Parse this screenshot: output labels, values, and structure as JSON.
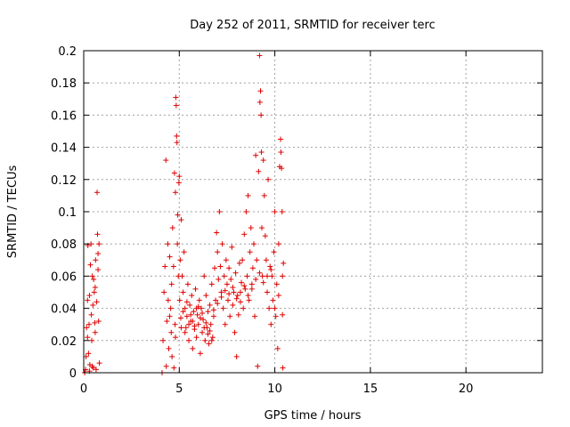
{
  "chart_data": {
    "type": "scatter",
    "title": "Day 252 of 2011, SRMTID for receiver terc",
    "xlabel": "GPS time / hours",
    "ylabel": "SRMTID / TECUs",
    "xlim": [
      0,
      24
    ],
    "ylim": [
      0,
      0.2
    ],
    "xticks": [
      0,
      5,
      10,
      15,
      20
    ],
    "xtick_labels": [
      "0",
      "5",
      "10",
      "15",
      "20"
    ],
    "yticks": [
      0,
      0.02,
      0.04,
      0.06,
      0.08,
      0.1,
      0.12,
      0.14,
      0.16,
      0.18,
      0.2
    ],
    "ytick_labels": [
      "0",
      "0.02",
      "0.04",
      "0.06",
      "0.08",
      "0.1",
      "0.12",
      "0.14",
      "0.16",
      "0.18",
      "0.2"
    ],
    "grid": true,
    "marker": "+",
    "color": "#e00000",
    "series": [
      {
        "points": [
          [
            0.05,
            0.0
          ],
          [
            0.1,
            0.002
          ],
          [
            0.12,
            0.01
          ],
          [
            0.15,
            0.028
          ],
          [
            0.2,
            0.045
          ],
          [
            0.22,
            0.079
          ],
          [
            0.25,
            0.012
          ],
          [
            0.28,
            0.03
          ],
          [
            0.3,
            0.048
          ],
          [
            0.32,
            0.005
          ],
          [
            0.35,
            0.067
          ],
          [
            0.38,
            0.08
          ],
          [
            0.4,
            0.036
          ],
          [
            0.42,
            0.02
          ],
          [
            0.45,
            0.06
          ],
          [
            0.48,
            0.042
          ],
          [
            0.5,
            0.003
          ],
          [
            0.52,
            0.058
          ],
          [
            0.55,
            0.05
          ],
          [
            0.58,
            0.031
          ],
          [
            0.6,
            0.025
          ],
          [
            0.62,
            0.07
          ],
          [
            0.65,
            0.002
          ],
          [
            0.68,
            0.044
          ],
          [
            0.7,
            0.112
          ],
          [
            0.72,
            0.086
          ],
          [
            0.75,
            0.064
          ],
          [
            0.78,
            0.032
          ],
          [
            0.8,
            0.08
          ],
          [
            0.82,
            0.006
          ],
          [
            0.3,
            0.001
          ],
          [
            0.45,
            0.004
          ],
          [
            0.6,
            0.053
          ],
          [
            0.75,
            0.074
          ],
          [
            0.2,
            0.022
          ],
          [
            4.1,
            0.0
          ],
          [
            4.15,
            0.02
          ],
          [
            4.2,
            0.05
          ],
          [
            4.25,
            0.066
          ],
          [
            4.3,
            0.132
          ],
          [
            4.32,
            0.004
          ],
          [
            4.35,
            0.032
          ],
          [
            4.4,
            0.08
          ],
          [
            4.42,
            0.045
          ],
          [
            4.45,
            0.015
          ],
          [
            4.5,
            0.072
          ],
          [
            4.55,
            0.04
          ],
          [
            4.58,
            0.025
          ],
          [
            4.6,
            0.055
          ],
          [
            4.62,
            0.01
          ],
          [
            4.65,
            0.09
          ],
          [
            4.7,
            0.066
          ],
          [
            4.72,
            0.003
          ],
          [
            4.75,
            0.124
          ],
          [
            4.78,
            0.03
          ],
          [
            4.8,
            0.112
          ],
          [
            4.82,
            0.171
          ],
          [
            4.84,
            0.166
          ],
          [
            4.86,
            0.147
          ],
          [
            4.88,
            0.143
          ],
          [
            4.9,
            0.08
          ],
          [
            4.92,
            0.098
          ],
          [
            4.95,
            0.06
          ],
          [
            4.98,
            0.118
          ],
          [
            5.0,
            0.122
          ],
          [
            5.02,
            0.045
          ],
          [
            5.05,
            0.07
          ],
          [
            5.08,
            0.034
          ],
          [
            5.1,
            0.095
          ],
          [
            5.15,
            0.06
          ],
          [
            5.2,
            0.05
          ],
          [
            5.25,
            0.075
          ],
          [
            5.3,
            0.04
          ],
          [
            5.35,
            0.028
          ],
          [
            5.4,
            0.035
          ],
          [
            5.45,
            0.055
          ],
          [
            5.5,
            0.02
          ],
          [
            5.55,
            0.042
          ],
          [
            5.6,
            0.032
          ],
          [
            5.65,
            0.048
          ],
          [
            5.7,
            0.015
          ],
          [
            5.75,
            0.038
          ],
          [
            5.8,
            0.027
          ],
          [
            5.85,
            0.052
          ],
          [
            5.9,
            0.022
          ],
          [
            5.95,
            0.036
          ],
          [
            6.0,
            0.03
          ],
          [
            6.05,
            0.045
          ],
          [
            6.1,
            0.012
          ],
          [
            6.15,
            0.04
          ],
          [
            6.2,
            0.025
          ],
          [
            6.25,
            0.033
          ],
          [
            6.3,
            0.06
          ],
          [
            6.35,
            0.02
          ],
          [
            6.4,
            0.048
          ],
          [
            6.45,
            0.028
          ],
          [
            6.5,
            0.038
          ],
          [
            6.55,
            0.018
          ],
          [
            6.6,
            0.042
          ],
          [
            6.65,
            0.03
          ],
          [
            6.7,
            0.055
          ],
          [
            6.75,
            0.022
          ],
          [
            6.8,
            0.035
          ],
          [
            6.85,
            0.065
          ],
          [
            6.9,
            0.045
          ],
          [
            6.95,
            0.087
          ],
          [
            7.0,
            0.075
          ],
          [
            7.05,
            0.058
          ],
          [
            7.1,
            0.1
          ],
          [
            7.15,
            0.066
          ],
          [
            7.2,
            0.05
          ],
          [
            7.25,
            0.08
          ],
          [
            7.3,
            0.04
          ],
          [
            7.35,
            0.06
          ],
          [
            7.4,
            0.03
          ],
          [
            7.45,
            0.07
          ],
          [
            7.5,
            0.055
          ],
          [
            7.55,
            0.045
          ],
          [
            7.6,
            0.065
          ],
          [
            7.65,
            0.035
          ],
          [
            7.7,
            0.058
          ],
          [
            7.75,
            0.078
          ],
          [
            7.8,
            0.042
          ],
          [
            7.85,
            0.05
          ],
          [
            7.9,
            0.025
          ],
          [
            7.95,
            0.062
          ],
          [
            8.0,
            0.01
          ],
          [
            8.05,
            0.048
          ],
          [
            8.1,
            0.036
          ],
          [
            8.15,
            0.068
          ],
          [
            8.2,
            0.044
          ],
          [
            8.25,
            0.056
          ],
          [
            8.3,
            0.07
          ],
          [
            8.35,
            0.04
          ],
          [
            8.4,
            0.086
          ],
          [
            8.45,
            0.052
          ],
          [
            8.5,
            0.1
          ],
          [
            8.55,
            0.06
          ],
          [
            8.6,
            0.11
          ],
          [
            8.65,
            0.045
          ],
          [
            8.7,
            0.075
          ],
          [
            8.75,
            0.09
          ],
          [
            8.8,
            0.055
          ],
          [
            8.85,
            0.065
          ],
          [
            8.9,
            0.08
          ],
          [
            8.95,
            0.035
          ],
          [
            9.0,
            0.135
          ],
          [
            9.05,
            0.07
          ],
          [
            9.1,
            0.004
          ],
          [
            9.15,
            0.125
          ],
          [
            9.2,
            0.197
          ],
          [
            9.22,
            0.168
          ],
          [
            9.25,
            0.175
          ],
          [
            9.28,
            0.16
          ],
          [
            9.3,
            0.137
          ],
          [
            9.32,
            0.09
          ],
          [
            9.35,
            0.06
          ],
          [
            9.4,
            0.132
          ],
          [
            9.45,
            0.11
          ],
          [
            9.5,
            0.085
          ],
          [
            9.55,
            0.07
          ],
          [
            9.6,
            0.05
          ],
          [
            9.65,
            0.12
          ],
          [
            9.7,
            0.04
          ],
          [
            9.75,
            0.066
          ],
          [
            9.8,
            0.03
          ],
          [
            9.85,
            0.06
          ],
          [
            9.9,
            0.045
          ],
          [
            9.95,
            0.075
          ],
          [
            10.0,
            0.1
          ],
          [
            10.05,
            0.035
          ],
          [
            10.1,
            0.055
          ],
          [
            10.15,
            0.015
          ],
          [
            10.2,
            0.08
          ],
          [
            10.25,
            0.128
          ],
          [
            10.3,
            0.145
          ],
          [
            10.32,
            0.137
          ],
          [
            10.35,
            0.127
          ],
          [
            10.38,
            0.1
          ],
          [
            10.4,
            0.06
          ],
          [
            10.42,
            0.003
          ],
          [
            10.45,
            0.068
          ],
          [
            4.5,
            0.035
          ],
          [
            4.8,
            0.022
          ],
          [
            5.1,
            0.028
          ],
          [
            5.3,
            0.025
          ],
          [
            5.5,
            0.03
          ],
          [
            5.7,
            0.032
          ],
          [
            5.9,
            0.04
          ],
          [
            6.1,
            0.034
          ],
          [
            6.3,
            0.028
          ],
          [
            6.5,
            0.024
          ],
          [
            6.7,
            0.02
          ],
          [
            5.2,
            0.038
          ],
          [
            5.4,
            0.044
          ],
          [
            5.6,
            0.036
          ],
          [
            5.8,
            0.029
          ],
          [
            6.0,
            0.041
          ],
          [
            6.2,
            0.037
          ],
          [
            6.4,
            0.031
          ],
          [
            6.6,
            0.026
          ],
          [
            6.8,
            0.039
          ],
          [
            7.0,
            0.043
          ],
          [
            7.2,
            0.047
          ],
          [
            7.4,
            0.051
          ],
          [
            7.6,
            0.049
          ],
          [
            7.8,
            0.053
          ],
          [
            8.0,
            0.046
          ],
          [
            8.2,
            0.05
          ],
          [
            8.4,
            0.054
          ],
          [
            8.6,
            0.048
          ],
          [
            8.8,
            0.052
          ],
          [
            9.0,
            0.058
          ],
          [
            9.2,
            0.062
          ],
          [
            9.4,
            0.056
          ],
          [
            9.6,
            0.06
          ],
          [
            9.8,
            0.064
          ],
          [
            10.0,
            0.04
          ],
          [
            10.2,
            0.048
          ],
          [
            10.4,
            0.036
          ]
        ]
      }
    ]
  }
}
